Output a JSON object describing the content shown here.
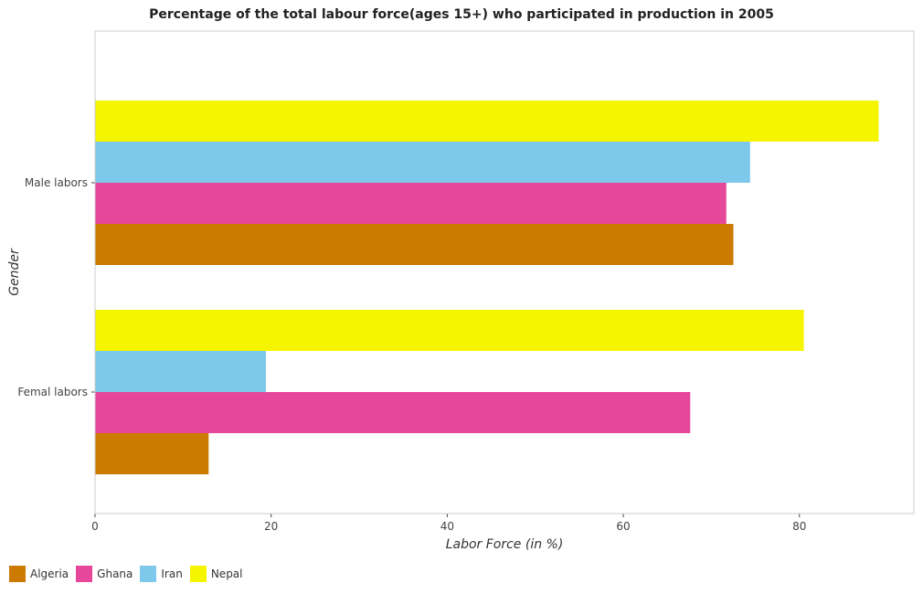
{
  "chart_data": {
    "type": "bar",
    "orientation": "horizontal",
    "title": "Percentage of the total labour force(ages 15+) who participated in production in 2005",
    "xlabel": "Labor Force (in %)",
    "ylabel": "Gender",
    "xlim": [
      0,
      93
    ],
    "xticks": [
      0,
      20,
      40,
      60,
      80
    ],
    "categories": [
      "Femal labors",
      "Male labors"
    ],
    "series": [
      {
        "name": "Algeria",
        "color": "#cc7a00",
        "values": [
          12.9,
          72.5
        ]
      },
      {
        "name": "Ghana",
        "color": "#e6479a",
        "values": [
          67.6,
          71.7
        ]
      },
      {
        "name": "Iran",
        "color": "#7ec8ec",
        "values": [
          19.4,
          74.4
        ]
      },
      {
        "name": "Nepal",
        "color": "#f5f500",
        "values": [
          80.5,
          89.0
        ]
      }
    ],
    "grid": false,
    "legend_position": "bottom-left"
  }
}
